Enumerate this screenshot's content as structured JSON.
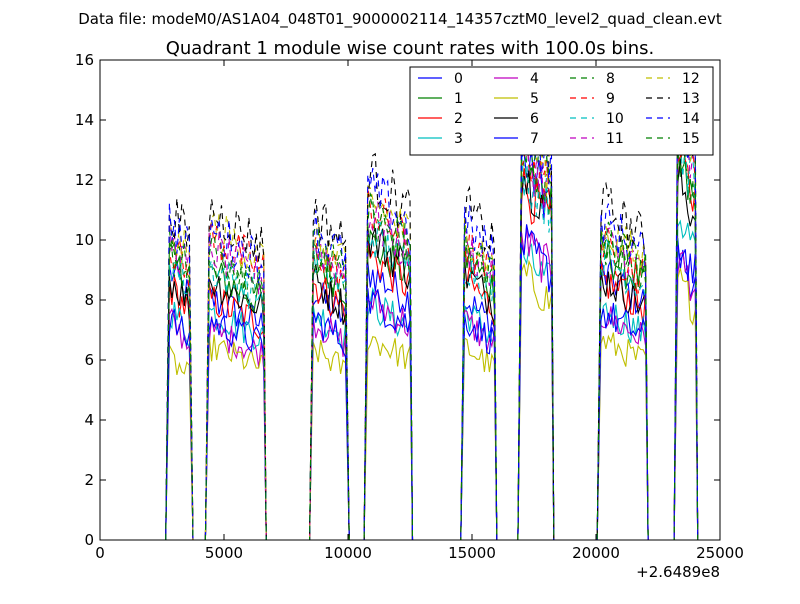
{
  "chart_data": {
    "type": "line",
    "suptitle": "Data file: modeM0/AS1A04_048T01_9000002114_14357cztM0_level2_quad_clean.evt",
    "title": "Quadrant 1 module wise count rates with 100.0s bins.",
    "xlabel": "",
    "ylabel": "",
    "x_offset_label": "+2.6489e8",
    "xlim": [
      0,
      25000
    ],
    "ylim": [
      0,
      16
    ],
    "xticks": [
      0,
      5000,
      10000,
      15000,
      20000,
      25000
    ],
    "yticks": [
      0,
      2,
      4,
      6,
      8,
      10,
      12,
      14,
      16
    ],
    "grid": false,
    "legend_position": "top-right",
    "segments": [
      [
        2800,
        3650
      ],
      [
        4400,
        6600
      ],
      [
        8600,
        9950
      ],
      [
        10800,
        12500
      ],
      [
        14700,
        15900
      ],
      [
        17000,
        18200
      ],
      [
        20200,
        22000
      ],
      [
        23300,
        24000
      ]
    ],
    "series": [
      {
        "name": "0",
        "color": "#0000ff",
        "style": "solid",
        "levels": [
          8.5,
          7.6,
          7.8,
          8.5,
          7.6,
          12.0,
          8.4,
          9.0
        ]
      },
      {
        "name": "1",
        "color": "#008000",
        "style": "solid",
        "levels": [
          8.9,
          8.4,
          8.9,
          9.4,
          8.9,
          11.8,
          9.1,
          11.8
        ]
      },
      {
        "name": "2",
        "color": "#ff0000",
        "style": "solid",
        "levels": [
          8.0,
          7.6,
          8.1,
          9.0,
          8.2,
          11.2,
          8.2,
          12.0
        ]
      },
      {
        "name": "3",
        "color": "#00bfbf",
        "style": "solid",
        "levels": [
          7.3,
          7.2,
          7.2,
          7.5,
          7.2,
          9.0,
          7.3,
          10.3
        ]
      },
      {
        "name": "4",
        "color": "#bf00bf",
        "style": "solid",
        "levels": [
          6.9,
          6.6,
          6.9,
          7.6,
          6.9,
          9.5,
          7.1,
          8.9
        ]
      },
      {
        "name": "5",
        "color": "#bfbf00",
        "style": "solid",
        "levels": [
          5.7,
          6.1,
          6.0,
          6.4,
          6.1,
          8.4,
          6.3,
          8.2
        ]
      },
      {
        "name": "6",
        "color": "#000000",
        "style": "solid",
        "levels": [
          8.3,
          8.2,
          8.2,
          9.6,
          8.4,
          11.6,
          8.3,
          11.4
        ]
      },
      {
        "name": "7",
        "color": "#0000ff",
        "style": "solid",
        "levels": [
          7.0,
          6.9,
          7.0,
          7.6,
          7.0,
          9.4,
          7.2,
          9.4
        ]
      },
      {
        "name": "8",
        "color": "#008000",
        "style": "dashed",
        "levels": [
          9.1,
          8.9,
          9.0,
          10.3,
          9.1,
          12.6,
          9.3,
          12.5
        ]
      },
      {
        "name": "9",
        "color": "#ff0000",
        "style": "dashed",
        "levels": [
          9.3,
          9.6,
          9.2,
          10.5,
          9.3,
          12.5,
          9.3,
          13.2
        ]
      },
      {
        "name": "10",
        "color": "#00bfbf",
        "style": "dashed",
        "levels": [
          8.9,
          8.6,
          8.8,
          9.7,
          8.8,
          11.7,
          9.0,
          12.5
        ]
      },
      {
        "name": "11",
        "color": "#bf00bf",
        "style": "dashed",
        "levels": [
          9.5,
          9.2,
          9.3,
          10.2,
          9.3,
          12.3,
          9.5,
          12.8
        ]
      },
      {
        "name": "12",
        "color": "#bfbf00",
        "style": "dashed",
        "levels": [
          9.8,
          9.9,
          9.6,
          10.8,
          9.8,
          13.0,
          9.8,
          13.6
        ]
      },
      {
        "name": "13",
        "color": "#000000",
        "style": "dashed",
        "levels": [
          10.5,
          10.4,
          10.4,
          11.6,
          10.5,
          13.8,
          10.6,
          14.2
        ]
      },
      {
        "name": "14",
        "color": "#0000ff",
        "style": "dashed",
        "levels": [
          10.1,
          9.8,
          9.9,
          11.1,
          10.0,
          13.3,
          10.1,
          13.8
        ]
      },
      {
        "name": "15",
        "color": "#008000",
        "style": "dashed",
        "levels": [
          9.5,
          9.2,
          9.3,
          10.3,
          9.4,
          12.7,
          9.6,
          13.0
        ]
      }
    ]
  }
}
